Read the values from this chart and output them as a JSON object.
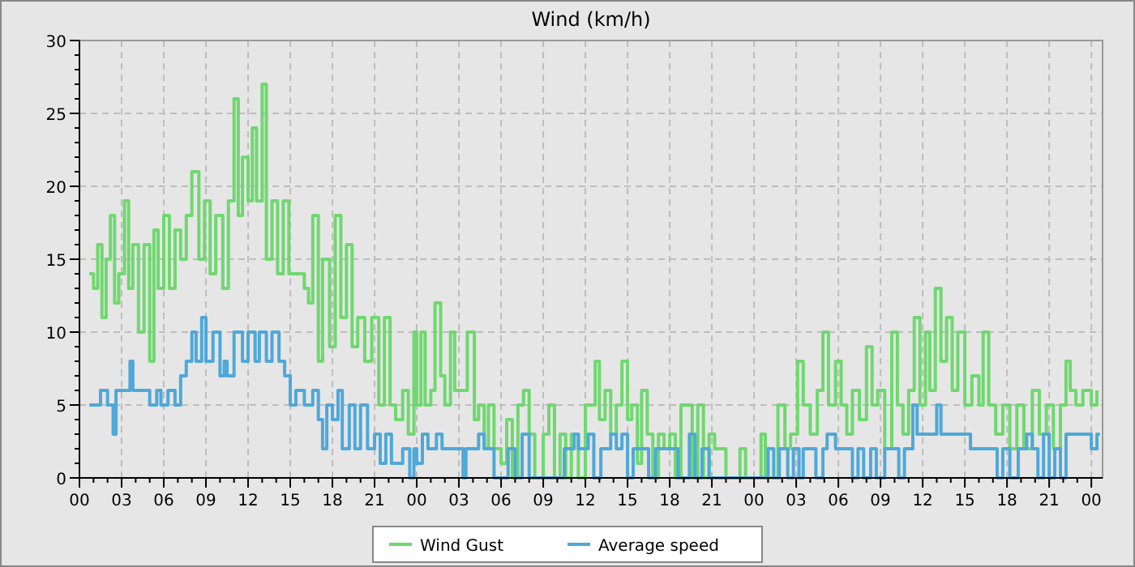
{
  "chart_data": {
    "type": "step",
    "title": "Wind (km/h)",
    "legend": "bottom",
    "grid": true,
    "line_style": "solid",
    "xlim": [
      0,
      72.8
    ],
    "ylim": [
      0,
      30
    ],
    "xticks": [
      {
        "value": 0,
        "label": "00"
      },
      {
        "value": 1,
        "label": null
      },
      {
        "value": 2,
        "label": null
      },
      {
        "value": 3,
        "label": "03"
      },
      {
        "value": 4,
        "label": null
      },
      {
        "value": 5,
        "label": null
      },
      {
        "value": 6,
        "label": "06"
      },
      {
        "value": 7,
        "label": null
      },
      {
        "value": 8,
        "label": null
      },
      {
        "value": 9,
        "label": "09"
      },
      {
        "value": 10,
        "label": null
      },
      {
        "value": 11,
        "label": null
      },
      {
        "value": 12,
        "label": "12"
      },
      {
        "value": 13,
        "label": null
      },
      {
        "value": 14,
        "label": null
      },
      {
        "value": 15,
        "label": "15"
      },
      {
        "value": 16,
        "label": null
      },
      {
        "value": 17,
        "label": null
      },
      {
        "value": 18,
        "label": "18"
      },
      {
        "value": 19,
        "label": null
      },
      {
        "value": 20,
        "label": null
      },
      {
        "value": 21,
        "label": "21"
      },
      {
        "value": 22,
        "label": null
      },
      {
        "value": 23,
        "label": null
      },
      {
        "value": 24,
        "label": "00"
      },
      {
        "value": 25,
        "label": null
      },
      {
        "value": 26,
        "label": null
      },
      {
        "value": 27,
        "label": "03"
      },
      {
        "value": 28,
        "label": null
      },
      {
        "value": 29,
        "label": null
      },
      {
        "value": 30,
        "label": "06"
      },
      {
        "value": 31,
        "label": null
      },
      {
        "value": 32,
        "label": null
      },
      {
        "value": 33,
        "label": "09"
      },
      {
        "value": 34,
        "label": null
      },
      {
        "value": 35,
        "label": null
      },
      {
        "value": 36,
        "label": "12"
      },
      {
        "value": 37,
        "label": null
      },
      {
        "value": 38,
        "label": null
      },
      {
        "value": 39,
        "label": "15"
      },
      {
        "value": 40,
        "label": null
      },
      {
        "value": 41,
        "label": null
      },
      {
        "value": 42,
        "label": "18"
      },
      {
        "value": 43,
        "label": null
      },
      {
        "value": 44,
        "label": null
      },
      {
        "value": 45,
        "label": "21"
      },
      {
        "value": 46,
        "label": null
      },
      {
        "value": 47,
        "label": null
      },
      {
        "value": 48,
        "label": "00"
      },
      {
        "value": 49,
        "label": null
      },
      {
        "value": 50,
        "label": null
      },
      {
        "value": 51,
        "label": "03"
      },
      {
        "value": 52,
        "label": null
      },
      {
        "value": 53,
        "label": null
      },
      {
        "value": 54,
        "label": "06"
      },
      {
        "value": 55,
        "label": null
      },
      {
        "value": 56,
        "label": null
      },
      {
        "value": 57,
        "label": "09"
      },
      {
        "value": 58,
        "label": null
      },
      {
        "value": 59,
        "label": null
      },
      {
        "value": 60,
        "label": "12"
      },
      {
        "value": 61,
        "label": null
      },
      {
        "value": 62,
        "label": null
      },
      {
        "value": 63,
        "label": "15"
      },
      {
        "value": 64,
        "label": null
      },
      {
        "value": 65,
        "label": null
      },
      {
        "value": 66,
        "label": "18"
      },
      {
        "value": 67,
        "label": null
      },
      {
        "value": 68,
        "label": null
      },
      {
        "value": 69,
        "label": "21"
      },
      {
        "value": 70,
        "label": null
      },
      {
        "value": 71,
        "label": null
      },
      {
        "value": 72,
        "label": "00"
      }
    ],
    "yticks": [
      0,
      {
        "value": 1,
        "label": null
      },
      {
        "value": 2,
        "label": null
      },
      {
        "value": 3,
        "label": null
      },
      {
        "value": 4,
        "label": null
      },
      5,
      {
        "value": 6,
        "label": null
      },
      {
        "value": 7,
        "label": null
      },
      {
        "value": 8,
        "label": null
      },
      {
        "value": 9,
        "label": null
      },
      10,
      {
        "value": 11,
        "label": null
      },
      {
        "value": 12,
        "label": null
      },
      {
        "value": 13,
        "label": null
      },
      {
        "value": 14,
        "label": null
      },
      15,
      {
        "value": 16,
        "label": null
      },
      {
        "value": 17,
        "label": null
      },
      {
        "value": 18,
        "label": null
      },
      {
        "value": 19,
        "label": null
      },
      20,
      {
        "value": 21,
        "label": null
      },
      {
        "value": 22,
        "label": null
      },
      {
        "value": 23,
        "label": null
      },
      {
        "value": 24,
        "label": null
      },
      25,
      {
        "value": 26,
        "label": null
      },
      {
        "value": 27,
        "label": null
      },
      {
        "value": 28,
        "label": null
      },
      {
        "value": 29,
        "label": null
      },
      30
    ],
    "series": [
      {
        "name": "Wind Gust",
        "color": "#6fd86f",
        "x": [
          0.7,
          1.0,
          1.3,
          1.6,
          1.9,
          2.2,
          2.5,
          2.8,
          3.2,
          3.5,
          3.8,
          4.2,
          4.6,
          5.0,
          5.3,
          5.6,
          6.0,
          6.4,
          6.8,
          7.2,
          7.6,
          8.0,
          8.5,
          8.9,
          9.3,
          9.7,
          10.2,
          10.6,
          11.0,
          11.3,
          11.6,
          12.0,
          12.3,
          12.6,
          13.0,
          13.3,
          13.7,
          14.1,
          14.5,
          14.9,
          15.3,
          16.0,
          16.3,
          16.6,
          17.0,
          17.3,
          17.8,
          18.2,
          18.6,
          19.0,
          19.4,
          19.8,
          20.3,
          20.8,
          21.3,
          21.7,
          22.1,
          22.5,
          23.0,
          23.4,
          23.8,
          24.0,
          24.3,
          24.6,
          25.0,
          25.3,
          25.7,
          26.0,
          26.4,
          26.7,
          27.2,
          27.6,
          28.1,
          28.4,
          28.8,
          29.1,
          29.5,
          30.0,
          30.4,
          30.8,
          31.2,
          31.6,
          32.0,
          32.4,
          33.0,
          33.4,
          33.8,
          34.2,
          34.6,
          35.0,
          35.5,
          36.0,
          36.4,
          36.7,
          37.0,
          37.4,
          37.8,
          38.2,
          38.6,
          39.0,
          39.3,
          39.7,
          40.0,
          40.4,
          40.8,
          41.2,
          41.6,
          42.0,
          42.4,
          42.8,
          43.2,
          43.6,
          44.0,
          44.4,
          44.8,
          45.2,
          46.0,
          47.0,
          47.4,
          48.5,
          48.8,
          49.7,
          50.2,
          50.6,
          51.1,
          51.5,
          52.0,
          52.5,
          52.9,
          53.3,
          53.8,
          54.2,
          54.6,
          55.0,
          55.5,
          56.0,
          56.4,
          56.8,
          57.3,
          57.8,
          58.2,
          58.6,
          59.0,
          59.4,
          59.8,
          60.2,
          60.5,
          60.9,
          61.3,
          61.7,
          62.1,
          62.5,
          63.0,
          63.5,
          64.0,
          64.3,
          64.7,
          65.2,
          65.7,
          66.2,
          66.7,
          67.2,
          67.8,
          68.3,
          68.8,
          69.3,
          69.8,
          70.2,
          70.5,
          70.9,
          71.4,
          72.0,
          72.4
        ],
        "values": [
          14,
          13,
          16,
          11,
          15,
          18,
          12,
          14,
          19,
          13,
          16,
          10,
          16,
          8,
          17,
          13,
          18,
          13,
          17,
          15,
          18,
          21,
          15,
          19,
          14,
          18,
          13,
          19,
          26,
          18,
          22,
          19,
          24,
          19,
          27,
          15,
          19,
          14,
          19,
          14,
          14,
          13,
          12,
          18,
          8,
          15,
          9,
          18,
          11,
          16,
          9,
          11,
          8,
          11,
          5,
          11,
          5,
          4,
          6,
          3,
          10,
          5,
          10,
          5,
          6,
          12,
          7,
          5,
          10,
          6,
          6,
          10,
          4,
          5,
          2,
          5,
          2,
          1,
          4,
          0,
          5,
          6,
          3,
          0,
          3,
          5,
          0,
          3,
          0,
          3,
          0,
          5,
          5,
          8,
          4,
          6,
          3,
          5,
          8,
          4,
          5,
          1,
          6,
          3,
          0,
          3,
          2,
          3,
          0,
          5,
          5,
          0,
          5,
          0,
          3,
          2,
          0,
          2,
          0,
          3,
          0,
          5,
          2,
          3,
          8,
          5,
          3,
          6,
          10,
          5,
          8,
          5,
          3,
          6,
          4,
          9,
          5,
          6,
          2,
          10,
          5,
          3,
          6,
          11,
          5,
          10,
          6,
          13,
          8,
          11,
          6,
          10,
          5,
          7,
          5,
          10,
          5,
          3,
          5,
          2,
          5,
          2,
          6,
          3,
          5,
          2,
          5,
          8,
          6,
          5,
          6,
          5,
          6
        ]
      },
      {
        "name": "Average speed",
        "color": "#4fa8d8",
        "x": [
          0.7,
          1.5,
          2.0,
          2.4,
          2.6,
          3.2,
          3.6,
          3.8,
          5.0,
          5.5,
          5.8,
          6.3,
          6.8,
          7.2,
          7.6,
          8.0,
          8.3,
          8.7,
          9.0,
          9.5,
          10.0,
          10.3,
          10.5,
          11.0,
          11.6,
          12.0,
          12.5,
          12.8,
          13.3,
          13.7,
          14.2,
          14.6,
          15.0,
          15.4,
          16.0,
          16.6,
          17.0,
          17.3,
          17.6,
          18.0,
          18.4,
          18.7,
          19.2,
          19.6,
          20.0,
          20.5,
          21.0,
          21.4,
          21.8,
          22.2,
          23.0,
          23.5,
          23.8,
          24.0,
          24.4,
          24.8,
          25.4,
          25.8,
          27.0,
          27.3,
          27.5,
          28.4,
          28.8,
          29.5,
          30.5,
          31.0,
          31.5,
          32.0,
          34.5,
          35.2,
          35.5,
          36.2,
          36.6,
          37.1,
          37.8,
          38.2,
          38.6,
          39.0,
          39.4,
          40.5,
          41.0,
          42.6,
          43.4,
          43.8,
          44.3,
          44.8,
          49.0,
          49.4,
          49.8,
          50.4,
          50.8,
          51.2,
          51.5,
          52.4,
          52.9,
          53.2,
          53.8,
          55.0,
          55.4,
          55.8,
          56.3,
          56.7,
          57.3,
          58.3,
          58.7,
          59.3,
          59.6,
          60.4,
          61.0,
          61.3,
          63.4,
          65.3,
          65.7,
          66.2,
          66.8,
          67.4,
          67.8,
          68.2,
          68.6,
          69.0,
          69.4,
          69.8,
          70.2,
          71.0,
          72.0,
          72.4,
          72.6
        ],
        "values": [
          5,
          6,
          5,
          3,
          6,
          6,
          8,
          6,
          5,
          6,
          5,
          6,
          5,
          7,
          8,
          10,
          8,
          11,
          8,
          10,
          7,
          8,
          7,
          10,
          8,
          10,
          8,
          10,
          8,
          10,
          8,
          7,
          5,
          6,
          5,
          6,
          4,
          2,
          5,
          4,
          6,
          2,
          5,
          2,
          5,
          2,
          3,
          1,
          3,
          1,
          2,
          0,
          2,
          1,
          3,
          2,
          3,
          2,
          2,
          0,
          2,
          3,
          2,
          0,
          2,
          0,
          3,
          0,
          2,
          3,
          2,
          3,
          0,
          2,
          3,
          2,
          3,
          0,
          2,
          0,
          2,
          0,
          3,
          0,
          2,
          0,
          2,
          0,
          2,
          0,
          2,
          0,
          2,
          0,
          2,
          3,
          2,
          0,
          2,
          0,
          2,
          0,
          2,
          0,
          2,
          5,
          3,
          3,
          5,
          3,
          2,
          0,
          2,
          0,
          2,
          3,
          2,
          0,
          3,
          0,
          2,
          0,
          3,
          3,
          2,
          3,
          3
        ]
      }
    ]
  }
}
